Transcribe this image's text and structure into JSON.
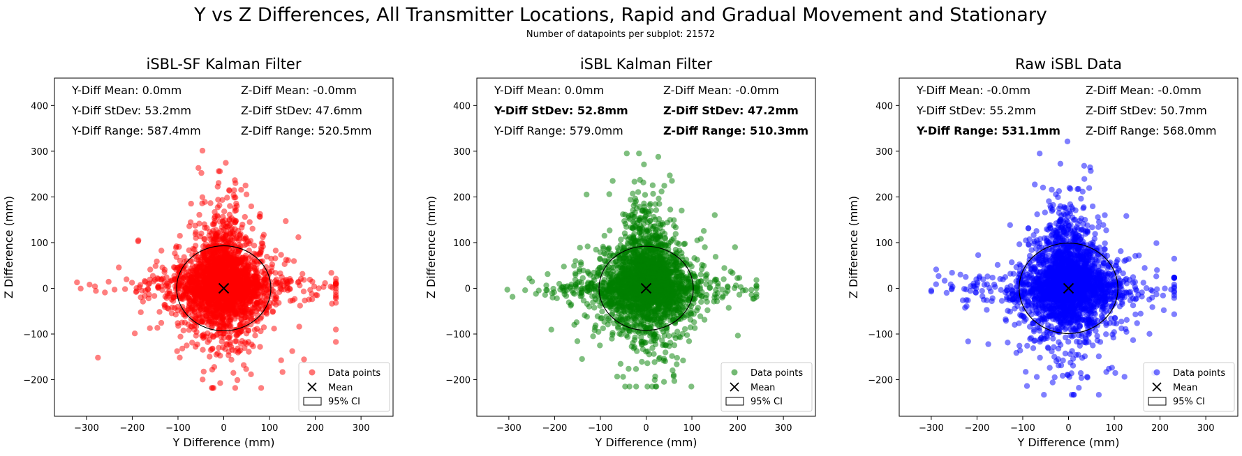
{
  "figure": {
    "suptitle": "Y vs Z Differences, All Transmitter Locations, Rapid and Gradual Movement and Stationary",
    "subtitle": "Number of datapoints per subplot: 21572"
  },
  "legend_labels": {
    "points": "Data points",
    "mean": "Mean",
    "ci": "95% CI"
  },
  "chart_data": [
    {
      "type": "scatter",
      "title": "iSBL-SF Kalman Filter",
      "xlabel": "Y Difference (mm)",
      "ylabel": "Z Difference (mm)",
      "xlim": [
        -370,
        370
      ],
      "ylim": [
        -280,
        460
      ],
      "xticks": [
        -300,
        -200,
        -100,
        0,
        100,
        200,
        300
      ],
      "yticks": [
        -200,
        -100,
        0,
        100,
        200,
        300,
        400
      ],
      "color": "#ff0000",
      "mean": [
        0,
        0
      ],
      "ci_radius": [
        103,
        93
      ],
      "spread": {
        "y_std": 53.2,
        "z_std": 47.6,
        "y_range": [
          -342,
          245
        ],
        "z_range": [
          -218,
          302
        ]
      },
      "stats": [
        {
          "text": "Y-Diff Mean: 0.0mm",
          "bold": false
        },
        {
          "text": "Z-Diff Mean: -0.0mm",
          "bold": false
        },
        {
          "text": "Y-Diff StDev: 53.2mm",
          "bold": false
        },
        {
          "text": "Z-Diff StDev: 47.6mm",
          "bold": false
        },
        {
          "text": "Y-Diff Range: 587.4mm",
          "bold": false
        },
        {
          "text": "Z-Diff Range: 520.5mm",
          "bold": false
        }
      ],
      "legend": "lower-right"
    },
    {
      "type": "scatter",
      "title": "iSBL Kalman Filter",
      "xlabel": "Y Difference (mm)",
      "ylabel": "Z Difference (mm)",
      "xlim": [
        -370,
        370
      ],
      "ylim": [
        -280,
        460
      ],
      "xticks": [
        -300,
        -200,
        -100,
        0,
        100,
        200,
        300
      ],
      "yticks": [
        -200,
        -100,
        0,
        100,
        200,
        300,
        400
      ],
      "color": "#008000",
      "mean": [
        0,
        0
      ],
      "ci_radius": [
        103,
        92
      ],
      "spread": {
        "y_std": 52.8,
        "z_std": 47.2,
        "y_range": [
          -338,
          241
        ],
        "z_range": [
          -215,
          295
        ]
      },
      "stats": [
        {
          "text": "Y-Diff Mean: 0.0mm",
          "bold": false
        },
        {
          "text": "Z-Diff Mean: -0.0mm",
          "bold": false
        },
        {
          "text": "Y-Diff StDev: 52.8mm",
          "bold": true
        },
        {
          "text": "Z-Diff StDev: 47.2mm",
          "bold": true
        },
        {
          "text": "Y-Diff Range: 579.0mm",
          "bold": false
        },
        {
          "text": "Z-Diff Range: 510.3mm",
          "bold": true
        }
      ],
      "legend": "lower-right"
    },
    {
      "type": "scatter",
      "title": "Raw iSBL Data",
      "xlabel": "Y Difference (mm)",
      "ylabel": "Z Difference (mm)",
      "xlim": [
        -370,
        370
      ],
      "ylim": [
        -280,
        460
      ],
      "xticks": [
        -300,
        -200,
        -100,
        0,
        100,
        200,
        300
      ],
      "yticks": [
        -200,
        -100,
        0,
        100,
        200,
        300,
        400
      ],
      "color": "#0000ff",
      "mean": [
        0,
        0
      ],
      "ci_radius": [
        108,
        99
      ],
      "spread": {
        "y_std": 55.2,
        "z_std": 50.7,
        "y_range": [
          -300,
          231
        ],
        "z_range": [
          -233,
          335
        ]
      },
      "stats": [
        {
          "text": "Y-Diff Mean: -0.0mm",
          "bold": false
        },
        {
          "text": "Z-Diff Mean: -0.0mm",
          "bold": false
        },
        {
          "text": "Y-Diff StDev: 55.2mm",
          "bold": false
        },
        {
          "text": "Z-Diff StDev: 50.7mm",
          "bold": false
        },
        {
          "text": "Y-Diff Range: 531.1mm",
          "bold": true
        },
        {
          "text": "Z-Diff Range: 568.0mm",
          "bold": false
        }
      ],
      "legend": "lower-right"
    }
  ]
}
